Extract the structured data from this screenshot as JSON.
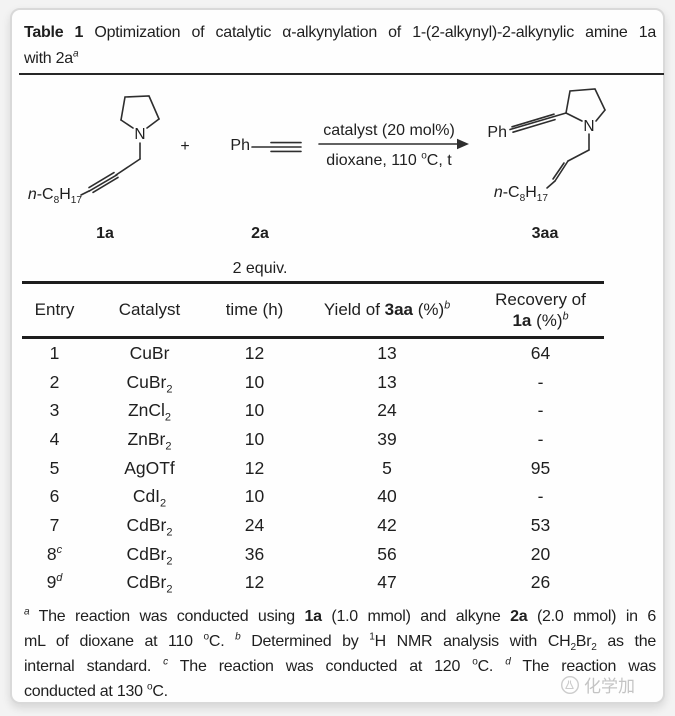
{
  "title": {
    "line1": [
      {
        "t": "Table 1",
        "b": true
      },
      {
        "t": "  Optimization of catalytic α-alkynylation of 1-(2-alkynyl)-2-alkynylic amine 1a"
      }
    ],
    "line2": [
      {
        "t": "with 2a"
      },
      {
        "t": "a",
        "sup": true,
        "i": true
      }
    ]
  },
  "scheme": {
    "reactant1": {
      "n_label": "N",
      "chain": [
        {
          "t": "n",
          "i": true
        },
        {
          "t": "-C"
        },
        {
          "t": "8",
          "sub": true
        },
        {
          "t": "H"
        },
        {
          "t": "17",
          "sub": true
        }
      ],
      "label": "1a"
    },
    "plus": "+",
    "reactant2": {
      "ph": "Ph",
      "label": "2a",
      "equiv": "2 equiv."
    },
    "arrow": {
      "above": "catalyst (20 mol%)",
      "below": [
        {
          "t": "dioxane, 110 "
        },
        {
          "t": "o",
          "sup": true
        },
        {
          "t": "C, t"
        }
      ]
    },
    "product": {
      "ph": "Ph",
      "n_label": "N",
      "chain": [
        {
          "t": "n",
          "i": true
        },
        {
          "t": "-C"
        },
        {
          "t": "8",
          "sub": true
        },
        {
          "t": "H"
        },
        {
          "t": "17",
          "sub": true
        }
      ],
      "label": "3aa"
    }
  },
  "table": {
    "headers": {
      "entry": [
        {
          "t": "Entry"
        }
      ],
      "catalyst": [
        {
          "t": "Catalyst"
        }
      ],
      "time": [
        {
          "t": "time (h)"
        }
      ],
      "yield": [
        {
          "t": "Yield of "
        },
        {
          "t": "3aa",
          "b": true
        },
        {
          "t": " (%)"
        },
        {
          "t": "b",
          "sup": true,
          "i": true
        }
      ],
      "recovery1": [
        {
          "t": "Recovery of"
        }
      ],
      "recovery2": [
        {
          "t": "1a",
          "b": true
        },
        {
          "t": " (%)"
        },
        {
          "t": "b",
          "sup": true,
          "i": true
        }
      ]
    },
    "rows": [
      {
        "entry": [
          {
            "t": "1"
          }
        ],
        "catalyst": [
          {
            "t": "CuBr"
          }
        ],
        "time": "12",
        "yield": "13",
        "recovery": "64"
      },
      {
        "entry": [
          {
            "t": "2"
          }
        ],
        "catalyst": [
          {
            "t": "CuBr"
          },
          {
            "t": "2",
            "sub": true
          }
        ],
        "time": "10",
        "yield": "13",
        "recovery": "-"
      },
      {
        "entry": [
          {
            "t": "3"
          }
        ],
        "catalyst": [
          {
            "t": "ZnCl"
          },
          {
            "t": "2",
            "sub": true
          }
        ],
        "time": "10",
        "yield": "24",
        "recovery": "-"
      },
      {
        "entry": [
          {
            "t": "4"
          }
        ],
        "catalyst": [
          {
            "t": "ZnBr"
          },
          {
            "t": "2",
            "sub": true
          }
        ],
        "time": "10",
        "yield": "39",
        "recovery": "-"
      },
      {
        "entry": [
          {
            "t": "5"
          }
        ],
        "catalyst": [
          {
            "t": "AgOTf"
          }
        ],
        "time": "12",
        "yield": "5",
        "recovery": "95"
      },
      {
        "entry": [
          {
            "t": "6"
          }
        ],
        "catalyst": [
          {
            "t": "CdI"
          },
          {
            "t": "2",
            "sub": true
          }
        ],
        "time": "10",
        "yield": "40",
        "recovery": "-"
      },
      {
        "entry": [
          {
            "t": "7"
          }
        ],
        "catalyst": [
          {
            "t": "CdBr"
          },
          {
            "t": "2",
            "sub": true
          }
        ],
        "time": "24",
        "yield": "42",
        "recovery": "53"
      },
      {
        "entry": [
          {
            "t": "8"
          },
          {
            "t": "c",
            "sup": true,
            "i": true
          }
        ],
        "catalyst": [
          {
            "t": "CdBr"
          },
          {
            "t": "2",
            "sub": true
          }
        ],
        "time": "36",
        "yield": "56",
        "recovery": "20"
      },
      {
        "entry": [
          {
            "t": "9"
          },
          {
            "t": "d",
            "sup": true,
            "i": true
          }
        ],
        "catalyst": [
          {
            "t": "CdBr"
          },
          {
            "t": "2",
            "sub": true
          }
        ],
        "time": "12",
        "yield": "47",
        "recovery": "26"
      }
    ]
  },
  "footnotes": {
    "line1": [
      {
        "t": "a",
        "sup": true,
        "i": true
      },
      {
        "t": " The reaction was conducted using "
      },
      {
        "t": "1a",
        "b": true
      },
      {
        "t": " (1.0 mmol) and alkyne "
      },
      {
        "t": "2a",
        "b": true
      },
      {
        "t": " (2.0 mmol) in 6"
      }
    ],
    "line2": [
      {
        "t": "mL of dioxane at 110 "
      },
      {
        "t": "o",
        "sup": true
      },
      {
        "t": "C. "
      },
      {
        "t": "b",
        "sup": true,
        "i": true
      },
      {
        "t": " Determined by "
      },
      {
        "t": "1",
        "sup": true
      },
      {
        "t": "H NMR analysis with CH"
      },
      {
        "t": "2",
        "sub": true
      },
      {
        "t": "Br"
      },
      {
        "t": "2",
        "sub": true
      },
      {
        "t": " as the"
      }
    ],
    "line3": [
      {
        "t": "internal standard. "
      },
      {
        "t": "c",
        "sup": true,
        "i": true
      },
      {
        "t": " The reaction was conducted at 120 "
      },
      {
        "t": "o",
        "sup": true
      },
      {
        "t": "C. "
      },
      {
        "t": "d",
        "sup": true,
        "i": true
      },
      {
        "t": " The reaction was"
      }
    ],
    "line4": [
      {
        "t": "conducted at 130 "
      },
      {
        "t": "o",
        "sup": true
      },
      {
        "t": "C."
      }
    ]
  },
  "watermark": {
    "text": "化学加"
  },
  "colors": {
    "ink": "#1f1f1f",
    "rule": "#1d1d1d",
    "card_border": "#d9d9d9",
    "watermark_gray": "#c4c4c4"
  }
}
